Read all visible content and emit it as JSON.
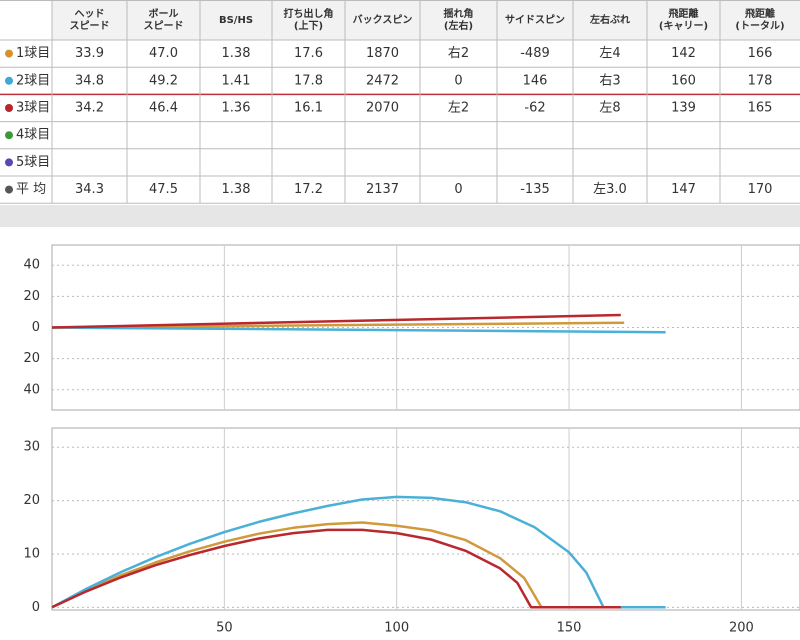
{
  "table": {
    "columns": [
      [
        "ヘッド",
        "スピード"
      ],
      [
        "ボール",
        "スピード"
      ],
      [
        "BS/HS"
      ],
      [
        "打ち出し角",
        "(上下)"
      ],
      [
        "バックスピン"
      ],
      [
        "揺れ角",
        "(左右)"
      ],
      [
        "サイドスピン"
      ],
      [
        "左右ぶれ"
      ],
      [
        "飛距離",
        "(キャリー)"
      ],
      [
        "飛距離",
        "(トータル)"
      ]
    ],
    "rows": [
      {
        "label": "1球目",
        "color": "#d4922e",
        "cells": [
          "33.9",
          "47.0",
          "1.38",
          "17.6",
          "1870",
          "右2",
          "-489",
          "左4",
          "142",
          "166"
        ]
      },
      {
        "label": "2球目",
        "color": "#3fa9d6",
        "cells": [
          "34.8",
          "49.2",
          "1.41",
          "17.8",
          "2472",
          "0",
          "146",
          "右3",
          "160",
          "178"
        ]
      },
      {
        "label": "3球目",
        "color": "#b5262d",
        "cells": [
          "34.2",
          "46.4",
          "1.36",
          "16.1",
          "2070",
          "左2",
          "-62",
          "左8",
          "139",
          "165"
        ]
      },
      {
        "label": "4球目",
        "color": "#3a9a3a"
      },
      {
        "label": "5球目",
        "color": "#5a48b0"
      },
      {
        "label": "平 均",
        "color": "#555555",
        "cells": [
          "34.3",
          "47.5",
          "1.38",
          "17.2",
          "2137",
          "0",
          "-135",
          "左3.0",
          "147",
          "170"
        ]
      }
    ]
  },
  "chart_data": [
    {
      "type": "line",
      "xlim": [
        0,
        217
      ],
      "ylim": [
        -53,
        53
      ],
      "yticks": [
        40,
        20,
        0,
        {
          "value": -20,
          "label": "20"
        },
        {
          "value": -40,
          "label": "40"
        }
      ],
      "grid": true,
      "series": [
        {
          "color": "#d09a3c",
          "x": [
            0,
            166
          ],
          "values": [
            0,
            3
          ]
        },
        {
          "color": "#4ab0d8",
          "x": [
            0,
            178
          ],
          "values": [
            0,
            -3
          ]
        },
        {
          "color": "#b8282e",
          "x": [
            0,
            165
          ],
          "values": [
            0,
            8
          ]
        }
      ]
    },
    {
      "type": "line",
      "xlim": [
        0,
        217
      ],
      "ylim": [
        -0.5,
        33.6
      ],
      "xticks": [
        50,
        100,
        150,
        200
      ],
      "yticks": [
        0,
        10,
        20,
        30
      ],
      "grid": true,
      "series": [
        {
          "color": "#d09a3c",
          "x": [
            0,
            10,
            20,
            30,
            40,
            50,
            60,
            70,
            80,
            90,
            100,
            110,
            120,
            130,
            137,
            142,
            166
          ],
          "values": [
            0,
            3.2,
            6.0,
            8.4,
            10.5,
            12.3,
            13.8,
            14.9,
            15.6,
            15.9,
            15.3,
            14.4,
            12.6,
            9.2,
            5.5,
            0,
            0
          ]
        },
        {
          "color": "#4ab0d8",
          "x": [
            0,
            10,
            20,
            30,
            40,
            50,
            60,
            70,
            80,
            90,
            100,
            110,
            120,
            130,
            140,
            150,
            155,
            160,
            178
          ],
          "values": [
            0,
            3.5,
            6.6,
            9.4,
            11.9,
            14.1,
            16.0,
            17.6,
            19.0,
            20.2,
            20.7,
            20.5,
            19.7,
            18.0,
            15.0,
            10.3,
            6.5,
            0,
            0
          ]
        },
        {
          "color": "#b8282e",
          "x": [
            0,
            10,
            20,
            30,
            40,
            50,
            60,
            70,
            80,
            90,
            100,
            110,
            120,
            130,
            135,
            139,
            165
          ],
          "values": [
            0,
            3.0,
            5.6,
            7.9,
            9.8,
            11.5,
            12.9,
            13.9,
            14.5,
            14.5,
            13.9,
            12.7,
            10.6,
            7.3,
            4.6,
            0,
            0
          ]
        }
      ]
    }
  ]
}
